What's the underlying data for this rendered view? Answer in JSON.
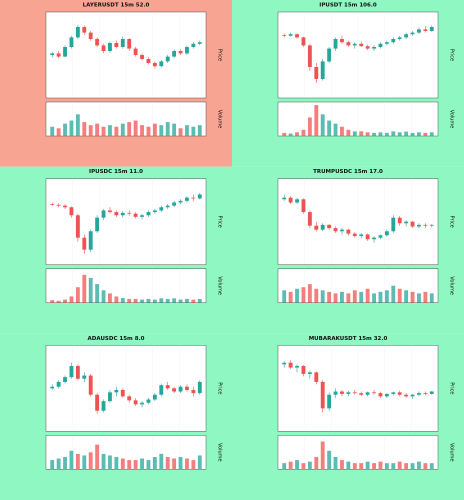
{
  "chart_data": [
    {
      "type": "candlestick",
      "title": "LAYERUSDT 15m 52.0",
      "y_label": "Price",
      "volume_label": "Volume",
      "background": "#f7a493",
      "up_color": "#26a69a",
      "down_color": "#ef5350",
      "ylim": [
        0,
        100
      ],
      "volume_lim": [
        0,
        110
      ],
      "candles": [
        [
          50,
          54,
          47,
          52
        ],
        [
          52,
          55,
          46,
          48
        ],
        [
          48,
          62,
          47,
          60
        ],
        [
          60,
          74,
          58,
          72
        ],
        [
          72,
          88,
          70,
          85
        ],
        [
          85,
          87,
          75,
          78
        ],
        [
          78,
          80,
          68,
          70
        ],
        [
          70,
          72,
          60,
          62
        ],
        [
          62,
          64,
          52,
          55
        ],
        [
          55,
          67,
          53,
          65
        ],
        [
          65,
          68,
          58,
          60
        ],
        [
          60,
          73,
          58,
          70
        ],
        [
          70,
          71,
          55,
          58
        ],
        [
          58,
          60,
          48,
          50
        ],
        [
          50,
          52,
          43,
          45
        ],
        [
          45,
          47,
          38,
          40
        ],
        [
          40,
          42,
          33,
          36
        ],
        [
          36,
          44,
          35,
          42
        ],
        [
          42,
          50,
          40,
          48
        ],
        [
          48,
          57,
          46,
          55
        ],
        [
          55,
          57,
          50,
          52
        ],
        [
          52,
          62,
          50,
          60
        ],
        [
          60,
          66,
          58,
          64
        ],
        [
          64,
          68,
          62,
          66
        ]
      ],
      "volume": [
        30,
        25,
        40,
        50,
        70,
        45,
        35,
        40,
        30,
        35,
        30,
        40,
        45,
        50,
        35,
        30,
        40,
        35,
        45,
        40,
        25,
        35,
        30,
        35
      ]
    },
    {
      "type": "candlestick",
      "title": "IPUSDT 15m 106.0",
      "y_label": "Price",
      "volume_label": "Volume",
      "background": "#8ff7c1",
      "up_color": "#26a69a",
      "down_color": "#ef5350",
      "ylim": [
        0,
        100
      ],
      "volume_lim": [
        0,
        110
      ],
      "candles": [
        [
          75,
          77,
          72,
          74
        ],
        [
          74,
          78,
          73,
          76
        ],
        [
          76,
          77,
          70,
          72
        ],
        [
          72,
          73,
          60,
          62
        ],
        [
          62,
          64,
          30,
          35
        ],
        [
          35,
          40,
          15,
          20
        ],
        [
          20,
          45,
          18,
          42
        ],
        [
          42,
          60,
          40,
          58
        ],
        [
          58,
          72,
          55,
          70
        ],
        [
          70,
          74,
          64,
          66
        ],
        [
          66,
          68,
          60,
          62
        ],
        [
          62,
          66,
          58,
          64
        ],
        [
          64,
          67,
          60,
          61
        ],
        [
          61,
          63,
          56,
          58
        ],
        [
          58,
          62,
          55,
          60
        ],
        [
          60,
          66,
          58,
          64
        ],
        [
          64,
          68,
          62,
          66
        ],
        [
          66,
          72,
          64,
          70
        ],
        [
          70,
          74,
          68,
          72
        ],
        [
          72,
          78,
          70,
          76
        ],
        [
          76,
          80,
          74,
          78
        ],
        [
          78,
          84,
          76,
          82
        ],
        [
          82,
          86,
          78,
          80
        ],
        [
          80,
          87,
          79,
          85
        ]
      ],
      "volume": [
        10,
        8,
        12,
        20,
        60,
        100,
        70,
        50,
        40,
        30,
        20,
        15,
        15,
        12,
        10,
        12,
        10,
        15,
        12,
        14,
        10,
        12,
        10,
        12
      ]
    },
    {
      "type": "candlestick",
      "title": "IPUSDC 15m 11.0",
      "y_label": "Price",
      "volume_label": "Volume",
      "background": "#8ff7c1",
      "up_color": "#26a69a",
      "down_color": "#ef5350",
      "ylim": [
        0,
        100
      ],
      "volume_lim": [
        0,
        110
      ],
      "candles": [
        [
          72,
          74,
          70,
          71
        ],
        [
          71,
          73,
          68,
          70
        ],
        [
          70,
          72,
          66,
          68
        ],
        [
          68,
          69,
          55,
          58
        ],
        [
          58,
          60,
          25,
          30
        ],
        [
          30,
          34,
          10,
          15
        ],
        [
          15,
          40,
          12,
          38
        ],
        [
          38,
          58,
          36,
          55
        ],
        [
          55,
          66,
          52,
          64
        ],
        [
          64,
          68,
          60,
          62
        ],
        [
          62,
          64,
          56,
          58
        ],
        [
          58,
          63,
          55,
          61
        ],
        [
          61,
          64,
          57,
          60
        ],
        [
          60,
          62,
          54,
          56
        ],
        [
          56,
          60,
          53,
          58
        ],
        [
          58,
          64,
          56,
          62
        ],
        [
          62,
          66,
          60,
          64
        ],
        [
          64,
          70,
          62,
          68
        ],
        [
          68,
          72,
          66,
          70
        ],
        [
          70,
          76,
          68,
          74
        ],
        [
          74,
          78,
          72,
          76
        ],
        [
          76,
          82,
          74,
          80
        ],
        [
          80,
          84,
          76,
          79
        ],
        [
          79,
          86,
          78,
          84
        ]
      ],
      "volume": [
        8,
        6,
        10,
        20,
        50,
        90,
        80,
        60,
        40,
        30,
        20,
        15,
        12,
        12,
        10,
        12,
        10,
        14,
        12,
        14,
        10,
        12,
        10,
        12
      ]
    },
    {
      "type": "candlestick",
      "title": "TRUMPUSDC 15m 17.0",
      "y_label": "Price",
      "volume_label": "Volume",
      "background": "#8ff7c1",
      "up_color": "#26a69a",
      "down_color": "#ef5350",
      "ylim": [
        0,
        100
      ],
      "volume_lim": [
        0,
        110
      ],
      "candles": [
        [
          78,
          84,
          76,
          80
        ],
        [
          80,
          82,
          72,
          74
        ],
        [
          74,
          80,
          72,
          78
        ],
        [
          78,
          79,
          60,
          62
        ],
        [
          62,
          64,
          42,
          45
        ],
        [
          45,
          50,
          38,
          40
        ],
        [
          40,
          48,
          38,
          46
        ],
        [
          46,
          47,
          40,
          42
        ],
        [
          42,
          44,
          36,
          38
        ],
        [
          38,
          42,
          34,
          40
        ],
        [
          40,
          41,
          33,
          35
        ],
        [
          35,
          37,
          30,
          32
        ],
        [
          32,
          36,
          29,
          34
        ],
        [
          34,
          35,
          26,
          28
        ],
        [
          28,
          32,
          24,
          30
        ],
        [
          30,
          34,
          28,
          33
        ],
        [
          33,
          40,
          31,
          38
        ],
        [
          38,
          58,
          36,
          55
        ],
        [
          55,
          57,
          45,
          48
        ],
        [
          48,
          52,
          44,
          50
        ],
        [
          50,
          51,
          42,
          44
        ],
        [
          44,
          48,
          42,
          46
        ],
        [
          46,
          48,
          42,
          45
        ],
        [
          45,
          47,
          43,
          46
        ]
      ],
      "volume": [
        40,
        35,
        45,
        50,
        60,
        45,
        40,
        35,
        30,
        35,
        30,
        40,
        35,
        45,
        30,
        35,
        40,
        55,
        45,
        40,
        35,
        30,
        35,
        30
      ]
    },
    {
      "type": "candlestick",
      "title": "ADAUSDC 15m 8.0",
      "y_label": "Price",
      "volume_label": "Volume",
      "background": "#8ff7c1",
      "up_color": "#26a69a",
      "down_color": "#ef5350",
      "ylim": [
        0,
        100
      ],
      "volume_lim": [
        0,
        110
      ],
      "candles": [
        [
          50,
          55,
          48,
          52
        ],
        [
          52,
          60,
          50,
          58
        ],
        [
          58,
          66,
          56,
          64
        ],
        [
          64,
          82,
          62,
          78
        ],
        [
          78,
          80,
          60,
          62
        ],
        [
          62,
          70,
          58,
          66
        ],
        [
          66,
          68,
          40,
          42
        ],
        [
          42,
          44,
          18,
          22
        ],
        [
          22,
          36,
          20,
          34
        ],
        [
          34,
          48,
          32,
          45
        ],
        [
          45,
          52,
          40,
          48
        ],
        [
          48,
          50,
          38,
          40
        ],
        [
          40,
          42,
          32,
          35
        ],
        [
          35,
          38,
          28,
          30
        ],
        [
          30,
          34,
          26,
          32
        ],
        [
          32,
          38,
          30,
          36
        ],
        [
          36,
          44,
          34,
          42
        ],
        [
          42,
          56,
          40,
          54
        ],
        [
          54,
          58,
          48,
          50
        ],
        [
          50,
          52,
          44,
          46
        ],
        [
          46,
          54,
          44,
          52
        ],
        [
          52,
          55,
          46,
          48
        ],
        [
          48,
          52,
          40,
          44
        ],
        [
          44,
          60,
          42,
          58
        ]
      ],
      "volume": [
        30,
        35,
        40,
        60,
        50,
        45,
        55,
        80,
        50,
        45,
        40,
        35,
        30,
        30,
        35,
        30,
        40,
        50,
        40,
        35,
        40,
        35,
        30,
        45
      ]
    },
    {
      "type": "candlestick",
      "title": "MUBARAKUSDT 15m 32.0",
      "y_label": "Price",
      "volume_label": "Volume",
      "background": "#8ff7c1",
      "up_color": "#26a69a",
      "down_color": "#ef5350",
      "ylim": [
        0,
        100
      ],
      "volume_lim": [
        0,
        110
      ],
      "candles": [
        [
          80,
          84,
          76,
          82
        ],
        [
          82,
          85,
          74,
          76
        ],
        [
          76,
          80,
          70,
          78
        ],
        [
          78,
          79,
          65,
          68
        ],
        [
          68,
          72,
          62,
          70
        ],
        [
          70,
          71,
          55,
          58
        ],
        [
          58,
          60,
          20,
          25
        ],
        [
          25,
          45,
          22,
          42
        ],
        [
          42,
          50,
          38,
          46
        ],
        [
          46,
          48,
          40,
          43
        ],
        [
          43,
          47,
          40,
          45
        ],
        [
          45,
          48,
          42,
          44
        ],
        [
          44,
          46,
          40,
          42
        ],
        [
          42,
          46,
          40,
          45
        ],
        [
          45,
          48,
          42,
          44
        ],
        [
          44,
          46,
          38,
          40
        ],
        [
          40,
          44,
          38,
          43
        ],
        [
          43,
          46,
          41,
          45
        ],
        [
          45,
          47,
          40,
          42
        ],
        [
          42,
          44,
          38,
          40
        ],
        [
          40,
          43,
          37,
          42
        ],
        [
          42,
          46,
          40,
          44
        ],
        [
          44,
          46,
          41,
          43
        ],
        [
          43,
          47,
          42,
          46
        ]
      ],
      "volume": [
        20,
        25,
        30,
        20,
        25,
        40,
        90,
        60,
        40,
        30,
        25,
        20,
        20,
        25,
        20,
        25,
        20,
        20,
        25,
        20,
        20,
        25,
        20,
        20
      ]
    }
  ]
}
